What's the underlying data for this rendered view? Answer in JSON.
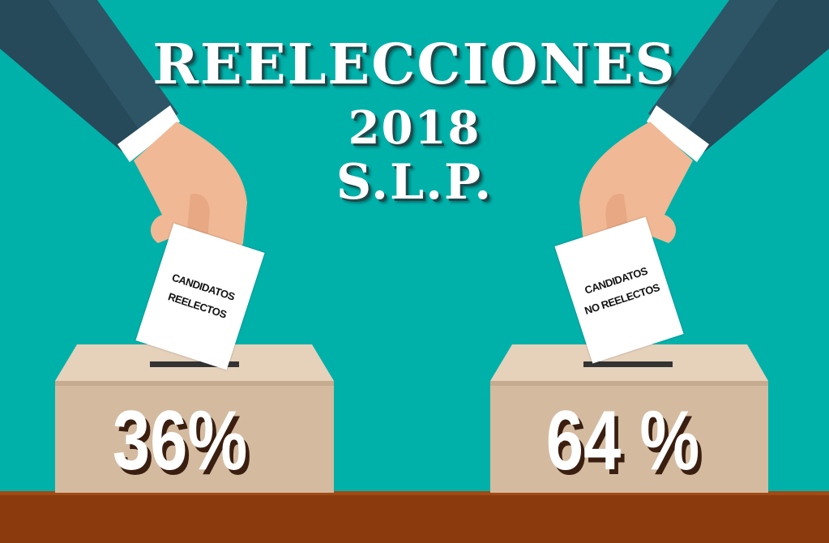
{
  "title": {
    "line1": "REELECCIONES",
    "line2": "2018",
    "line3": "S.L.P."
  },
  "left": {
    "ballot_line1": "CANDIDATOS",
    "ballot_line2": "REELECTOS",
    "percent": "36%",
    "value": 36
  },
  "right": {
    "ballot_line1": "CANDIDATOS",
    "ballot_line2": "NO REELECTOS",
    "percent": "64 %",
    "value": 64
  },
  "colors": {
    "background": "#00b1aa",
    "floor": "#8a3a0c",
    "box": "#dcc6ad",
    "sleeve": "#2e5566"
  }
}
